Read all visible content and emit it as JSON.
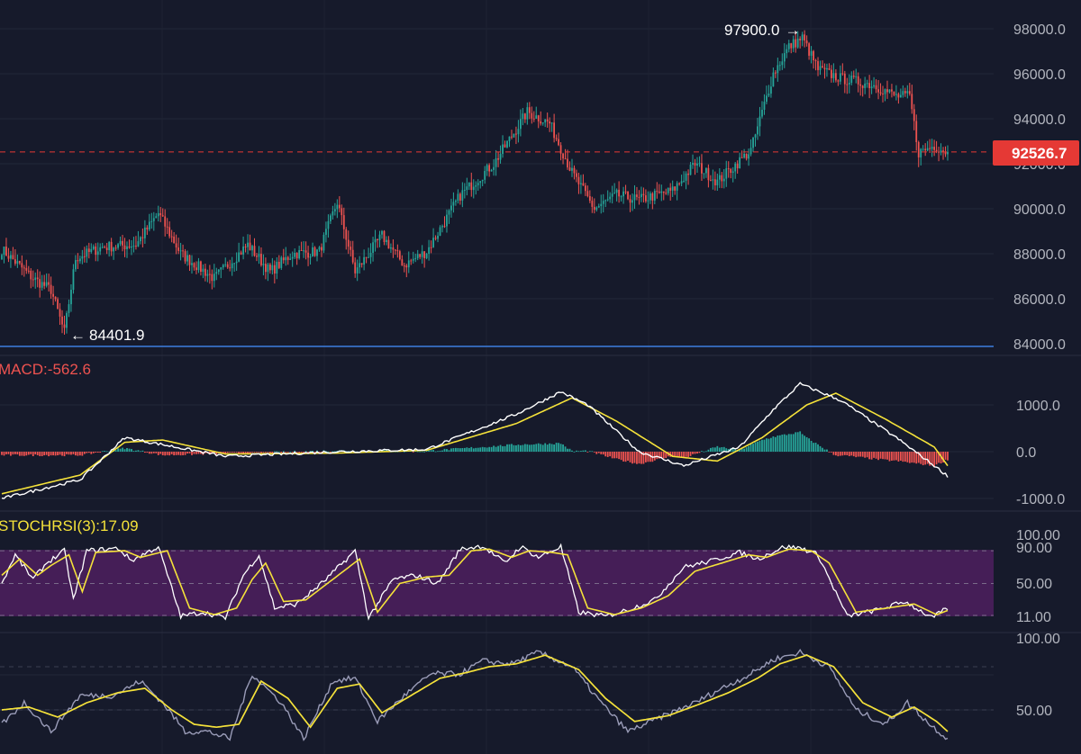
{
  "colors": {
    "background": "#161a2b",
    "up": "#26a69a",
    "down": "#ef5350",
    "macd_line": "#ffffff",
    "signal_line": "#f5e23a",
    "stoch_k": "#ffffff",
    "stoch_d": "#f5e23a",
    "band_fill": "#4a1f5c",
    "axis_text": "#b2b5be",
    "support_line": "#3d7ee0",
    "price_tag": "#e53935"
  },
  "price_axis": {
    "ticks": [
      "98000.0",
      "96000.0",
      "94000.0",
      "92000.0",
      "90000.0",
      "88000.0",
      "86000.0",
      "84000.0"
    ]
  },
  "annotations": {
    "high": {
      "text": "97900.0",
      "arrow": "→"
    },
    "low": {
      "text": "84401.9",
      "arrow": "←"
    },
    "last_price": "92526.7"
  },
  "macd_panel": {
    "label": "MACD:-562.6",
    "ticks": [
      "1000.0",
      "0.0",
      "-1000.0"
    ]
  },
  "stochrsi_panel": {
    "label": "STOCHRSI(3):17.09",
    "ticks": [
      "100.00",
      "90.00",
      "50.00",
      "11.00"
    ]
  },
  "bottom_panel": {
    "ticks": [
      "100.00",
      "50.00"
    ]
  },
  "chart_data": {
    "type": "candlestick",
    "price_range": [
      84000,
      98000
    ],
    "support_level": 84000,
    "last_price": 92526.7,
    "high": 97900.0,
    "low": 84401.9,
    "price_keypoints": [
      [
        0,
        88200
      ],
      [
        14,
        86900
      ],
      [
        22,
        86400
      ],
      [
        28,
        84500
      ],
      [
        33,
        87800
      ],
      [
        45,
        88300
      ],
      [
        60,
        88400
      ],
      [
        70,
        89800
      ],
      [
        80,
        88000
      ],
      [
        95,
        86900
      ],
      [
        110,
        88400
      ],
      [
        120,
        87200
      ],
      [
        130,
        88000
      ],
      [
        142,
        88100
      ],
      [
        150,
        90300
      ],
      [
        158,
        87200
      ],
      [
        170,
        88800
      ],
      [
        180,
        87500
      ],
      [
        190,
        88100
      ],
      [
        205,
        90600
      ],
      [
        220,
        92000
      ],
      [
        235,
        94300
      ],
      [
        245,
        93800
      ],
      [
        255,
        91600
      ],
      [
        265,
        90000
      ],
      [
        275,
        90600
      ],
      [
        285,
        90400
      ],
      [
        300,
        90800
      ],
      [
        310,
        92000
      ],
      [
        320,
        91200
      ],
      [
        335,
        92600
      ],
      [
        345,
        96000
      ],
      [
        352,
        97200
      ],
      [
        358,
        97600
      ],
      [
        365,
        96200
      ],
      [
        375,
        95800
      ],
      [
        390,
        95500
      ],
      [
        400,
        95000
      ],
      [
        406,
        95000
      ],
      [
        410,
        92500
      ],
      [
        417,
        92800
      ],
      [
        423,
        92526.7
      ]
    ],
    "macd_range": [
      -1100,
      1400
    ],
    "macd_line_keypoints": [
      [
        0,
        -1000
      ],
      [
        35,
        -600
      ],
      [
        55,
        300
      ],
      [
        72,
        150
      ],
      [
        100,
        -100
      ],
      [
        150,
        0
      ],
      [
        190,
        50
      ],
      [
        230,
        800
      ],
      [
        250,
        1280
      ],
      [
        262,
        1000
      ],
      [
        285,
        0
      ],
      [
        305,
        -300
      ],
      [
        330,
        100
      ],
      [
        345,
        900
      ],
      [
        357,
        1450
      ],
      [
        375,
        1100
      ],
      [
        400,
        300
      ],
      [
        417,
        -300
      ],
      [
        423,
        -520
      ]
    ],
    "signal_line_keypoints": [
      [
        0,
        -900
      ],
      [
        35,
        -500
      ],
      [
        55,
        200
      ],
      [
        72,
        250
      ],
      [
        100,
        -50
      ],
      [
        150,
        -30
      ],
      [
        190,
        30
      ],
      [
        230,
        600
      ],
      [
        255,
        1150
      ],
      [
        275,
        650
      ],
      [
        300,
        -100
      ],
      [
        320,
        -200
      ],
      [
        340,
        300
      ],
      [
        360,
        1000
      ],
      [
        373,
        1250
      ],
      [
        395,
        700
      ],
      [
        417,
        100
      ],
      [
        423,
        -300
      ]
    ],
    "stoch_k_keypoints": [
      [
        0,
        50
      ],
      [
        6,
        85
      ],
      [
        14,
        55
      ],
      [
        20,
        75
      ],
      [
        28,
        90
      ],
      [
        32,
        30
      ],
      [
        38,
        90
      ],
      [
        52,
        93
      ],
      [
        58,
        78
      ],
      [
        70,
        95
      ],
      [
        80,
        10
      ],
      [
        90,
        15
      ],
      [
        100,
        8
      ],
      [
        108,
        60
      ],
      [
        115,
        85
      ],
      [
        122,
        20
      ],
      [
        132,
        25
      ],
      [
        145,
        55
      ],
      [
        158,
        90
      ],
      [
        164,
        8
      ],
      [
        175,
        55
      ],
      [
        185,
        60
      ],
      [
        195,
        50
      ],
      [
        205,
        92
      ],
      [
        215,
        96
      ],
      [
        225,
        75
      ],
      [
        232,
        95
      ],
      [
        240,
        82
      ],
      [
        250,
        95
      ],
      [
        258,
        15
      ],
      [
        270,
        10
      ],
      [
        280,
        18
      ],
      [
        292,
        30
      ],
      [
        305,
        70
      ],
      [
        318,
        78
      ],
      [
        330,
        88
      ],
      [
        338,
        80
      ],
      [
        350,
        95
      ],
      [
        358,
        93
      ],
      [
        365,
        85
      ],
      [
        378,
        10
      ],
      [
        392,
        18
      ],
      [
        404,
        28
      ],
      [
        416,
        8
      ],
      [
        423,
        20
      ]
    ],
    "stoch_d_keypoints": [
      [
        0,
        60
      ],
      [
        8,
        80
      ],
      [
        16,
        60
      ],
      [
        22,
        72
      ],
      [
        30,
        85
      ],
      [
        36,
        40
      ],
      [
        42,
        88
      ],
      [
        55,
        90
      ],
      [
        62,
        82
      ],
      [
        74,
        90
      ],
      [
        84,
        20
      ],
      [
        95,
        12
      ],
      [
        105,
        20
      ],
      [
        112,
        55
      ],
      [
        118,
        75
      ],
      [
        126,
        28
      ],
      [
        136,
        30
      ],
      [
        148,
        55
      ],
      [
        160,
        80
      ],
      [
        168,
        15
      ],
      [
        178,
        50
      ],
      [
        190,
        58
      ],
      [
        200,
        60
      ],
      [
        210,
        90
      ],
      [
        218,
        92
      ],
      [
        228,
        82
      ],
      [
        236,
        90
      ],
      [
        246,
        88
      ],
      [
        253,
        85
      ],
      [
        262,
        20
      ],
      [
        274,
        12
      ],
      [
        286,
        20
      ],
      [
        298,
        35
      ],
      [
        310,
        65
      ],
      [
        322,
        75
      ],
      [
        334,
        85
      ],
      [
        342,
        82
      ],
      [
        352,
        92
      ],
      [
        362,
        90
      ],
      [
        370,
        75
      ],
      [
        382,
        15
      ],
      [
        396,
        20
      ],
      [
        408,
        25
      ],
      [
        418,
        12
      ],
      [
        423,
        17
      ]
    ],
    "bottom_gray_keypoints": [
      [
        0,
        40
      ],
      [
        10,
        55
      ],
      [
        22,
        35
      ],
      [
        35,
        60
      ],
      [
        50,
        60
      ],
      [
        62,
        70
      ],
      [
        72,
        55
      ],
      [
        82,
        35
      ],
      [
        92,
        35
      ],
      [
        102,
        30
      ],
      [
        112,
        75
      ],
      [
        125,
        55
      ],
      [
        135,
        30
      ],
      [
        148,
        70
      ],
      [
        158,
        72
      ],
      [
        168,
        42
      ],
      [
        180,
        60
      ],
      [
        192,
        75
      ],
      [
        205,
        75
      ],
      [
        215,
        84
      ],
      [
        228,
        82
      ],
      [
        240,
        90
      ],
      [
        255,
        80
      ],
      [
        268,
        55
      ],
      [
        280,
        35
      ],
      [
        295,
        45
      ],
      [
        310,
        55
      ],
      [
        322,
        65
      ],
      [
        335,
        75
      ],
      [
        345,
        85
      ],
      [
        357,
        90
      ],
      [
        370,
        80
      ],
      [
        382,
        50
      ],
      [
        395,
        40
      ],
      [
        405,
        55
      ],
      [
        415,
        40
      ],
      [
        423,
        30
      ]
    ],
    "bottom_yellow_keypoints": [
      [
        0,
        50
      ],
      [
        12,
        52
      ],
      [
        25,
        45
      ],
      [
        38,
        55
      ],
      [
        52,
        62
      ],
      [
        64,
        65
      ],
      [
        76,
        50
      ],
      [
        86,
        40
      ],
      [
        96,
        38
      ],
      [
        106,
        40
      ],
      [
        116,
        70
      ],
      [
        128,
        58
      ],
      [
        138,
        38
      ],
      [
        150,
        65
      ],
      [
        160,
        68
      ],
      [
        170,
        48
      ],
      [
        183,
        60
      ],
      [
        196,
        72
      ],
      [
        208,
        76
      ],
      [
        218,
        80
      ],
      [
        230,
        82
      ],
      [
        243,
        88
      ],
      [
        258,
        78
      ],
      [
        270,
        58
      ],
      [
        283,
        42
      ],
      [
        298,
        46
      ],
      [
        312,
        54
      ],
      [
        325,
        62
      ],
      [
        338,
        72
      ],
      [
        348,
        82
      ],
      [
        360,
        88
      ],
      [
        372,
        80
      ],
      [
        385,
        55
      ],
      [
        398,
        45
      ],
      [
        408,
        52
      ],
      [
        418,
        42
      ],
      [
        423,
        35
      ]
    ]
  }
}
